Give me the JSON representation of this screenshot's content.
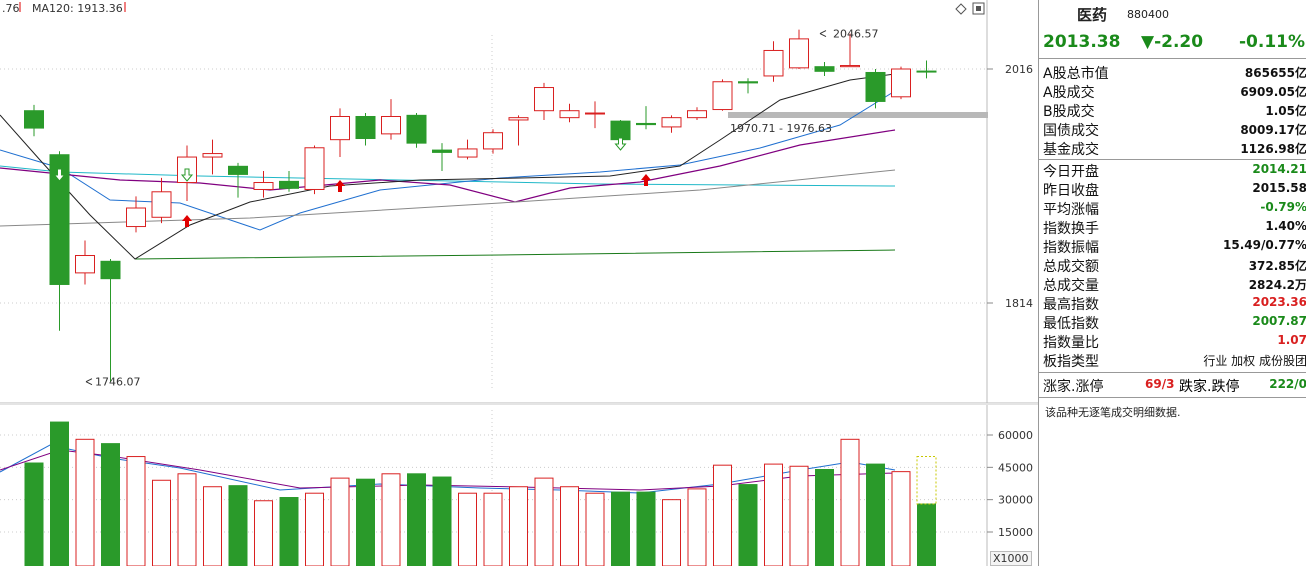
{
  "chart_data": {
    "type": "candlestick",
    "top_legend": {
      "left_fragment": ".76",
      "ma120": "MA120: 1913.36"
    },
    "price_axis_ticks": [
      "2016",
      "1814"
    ],
    "volume_axis_ticks": [
      "60000",
      "45000",
      "30000",
      "15000"
    ],
    "volume_unit": "X1000",
    "annotations": {
      "high": "2046.57",
      "low": "1746.07",
      "gap": "1970.71 - 1976.63"
    },
    "candles": [
      {
        "o": 1980,
        "c": 1965,
        "h": 1985,
        "l": 1958,
        "v": 47000
      },
      {
        "o": 1942,
        "c": 1830,
        "h": 1945,
        "l": 1790,
        "v": 66000
      },
      {
        "o": 1840,
        "c": 1855,
        "h": 1868,
        "l": 1830,
        "v": 58000
      },
      {
        "o": 1850,
        "c": 1835,
        "h": 1852,
        "l": 1746.07,
        "v": 56000
      },
      {
        "o": 1880,
        "c": 1896,
        "h": 1906,
        "l": 1875,
        "v": 50000
      },
      {
        "o": 1888,
        "c": 1910,
        "h": 1922,
        "l": 1883,
        "v": 39000
      },
      {
        "o": 1918,
        "c": 1940,
        "h": 1950,
        "l": 1902,
        "v": 42000
      },
      {
        "o": 1940,
        "c": 1943,
        "h": 1955,
        "l": 1925,
        "v": 36000
      },
      {
        "o": 1932,
        "c": 1925,
        "h": 1935,
        "l": 1905,
        "v": 36500
      },
      {
        "o": 1912,
        "c": 1918,
        "h": 1928,
        "l": 1905,
        "v": 29500
      },
      {
        "o": 1919,
        "c": 1913,
        "h": 1928,
        "l": 1910,
        "v": 31000
      },
      {
        "o": 1912,
        "c": 1948,
        "h": 1950,
        "l": 1908,
        "v": 33000
      },
      {
        "o": 1955,
        "c": 1975,
        "h": 1982,
        "l": 1940,
        "v": 40000
      },
      {
        "o": 1975,
        "c": 1956,
        "h": 1978,
        "l": 1950,
        "v": 39500
      },
      {
        "o": 1960,
        "c": 1975,
        "h": 1990,
        "l": 1955,
        "v": 42000
      },
      {
        "o": 1976,
        "c": 1952,
        "h": 1978,
        "l": 1948,
        "v": 42000
      },
      {
        "o": 1946,
        "c": 1944,
        "h": 1952,
        "l": 1928,
        "v": 40500
      },
      {
        "o": 1940,
        "c": 1947,
        "h": 1955,
        "l": 1938,
        "v": 33000
      },
      {
        "o": 1947,
        "c": 1961,
        "h": 1964,
        "l": 1943,
        "v": 33000
      },
      {
        "o": 1972,
        "c": 1974,
        "h": 1976,
        "l": 1950,
        "v": 36000
      },
      {
        "o": 1980,
        "c": 2000,
        "h": 2004,
        "l": 1972,
        "v": 40000
      },
      {
        "o": 1974,
        "c": 1980,
        "h": 1986,
        "l": 1970,
        "v": 36000
      },
      {
        "o": 1978,
        "c": 1978,
        "h": 1988,
        "l": 1965,
        "v": 33000
      },
      {
        "o": 1971,
        "c": 1955,
        "h": 1972,
        "l": 1950,
        "v": 33500
      },
      {
        "o": 1969,
        "c": 1968,
        "h": 1984,
        "l": 1964,
        "v": 33500
      },
      {
        "o": 1966,
        "c": 1974,
        "h": 1976,
        "l": 1961,
        "v": 30000
      },
      {
        "o": 1974,
        "c": 1980,
        "h": 1983,
        "l": 1972,
        "v": 35000
      },
      {
        "o": 1981,
        "c": 2005,
        "h": 2007,
        "l": 1980,
        "v": 46000
      },
      {
        "o": 2005,
        "c": 2004,
        "h": 2008,
        "l": 1995,
        "v": 37000
      },
      {
        "o": 2010,
        "c": 2032,
        "h": 2040,
        "l": 2005,
        "v": 46500
      },
      {
        "o": 2017,
        "c": 2042,
        "h": 2050,
        "l": 2016,
        "v": 45500
      },
      {
        "o": 2018,
        "c": 2014,
        "h": 2022,
        "l": 2010,
        "v": 44000
      },
      {
        "o": 2018,
        "c": 2019,
        "h": 2046.57,
        "l": 2018,
        "v": 58000
      },
      {
        "o": 2013,
        "c": 1988,
        "h": 2016,
        "l": 1982,
        "v": 46500
      },
      {
        "o": 1992,
        "c": 2016,
        "h": 2018,
        "l": 1990,
        "v": 43000
      },
      {
        "o": 2014.21,
        "c": 2013.38,
        "h": 2023.36,
        "l": 2007.87,
        "v": 28000,
        "current": true
      }
    ],
    "ma_lines": [
      {
        "name": "MA120",
        "color": "#20b8c8"
      },
      {
        "name": "ma-blue",
        "color": "#2070d0"
      },
      {
        "name": "ma-purple",
        "color": "#800080"
      },
      {
        "name": "ma-gray",
        "color": "#888888"
      },
      {
        "name": "ma-green",
        "color": "#1a7a1a"
      },
      {
        "name": "ma-black",
        "color": "#222222"
      }
    ],
    "colors": {
      "up": "#d92020",
      "down": "#2a9a2a"
    }
  },
  "panel": {
    "name": "医药",
    "code": "880400",
    "price": "2013.38",
    "change": "▼-2.20",
    "pct": "-0.11%",
    "rows": [
      {
        "k": "A股总市值",
        "v": "865655亿",
        "c": ""
      },
      {
        "k": "A股成交",
        "v": "6909.05亿",
        "c": ""
      },
      {
        "k": "B股成交",
        "v": "1.05亿",
        "c": ""
      },
      {
        "k": "国债成交",
        "v": "8009.17亿",
        "c": ""
      },
      {
        "k": "基金成交",
        "v": "1126.98亿",
        "c": ""
      },
      {
        "k": "今日开盘",
        "v": "2014.21",
        "c": "green"
      },
      {
        "k": "昨日收盘",
        "v": "2015.58",
        "c": ""
      },
      {
        "k": "平均涨幅",
        "v": "-0.79%",
        "c": "green"
      },
      {
        "k": "指数换手",
        "v": "1.40%",
        "c": ""
      },
      {
        "k": "指数振幅",
        "v": "15.49/0.77%",
        "c": ""
      },
      {
        "k": "总成交额",
        "v": "372.85亿",
        "c": ""
      },
      {
        "k": "总成交量",
        "v": "2824.2万",
        "c": ""
      },
      {
        "k": "最高指数",
        "v": "2023.36",
        "c": "red"
      },
      {
        "k": "最低指数",
        "v": "2007.87",
        "c": "green"
      },
      {
        "k": "指数量比",
        "v": "1.07",
        "c": "red"
      },
      {
        "k": "板指类型",
        "v": "行业 加权 成份股团",
        "c": "type"
      }
    ],
    "breadth": {
      "up_label": "涨家.涨停",
      "up_val": "69/3",
      "down_label": "跌家.跌停",
      "down_val": "222/0"
    },
    "note": "该品种无逐笔成交明细数据."
  }
}
